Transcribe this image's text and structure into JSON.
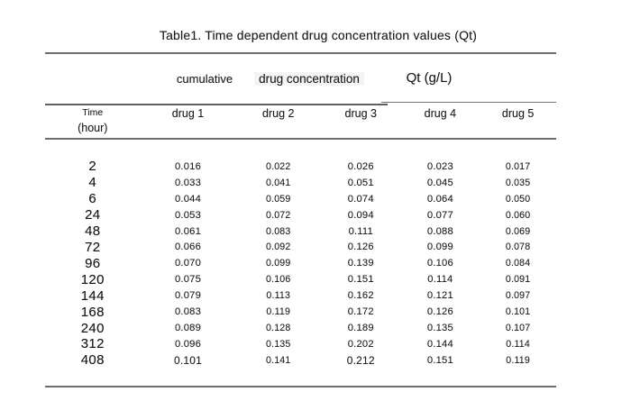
{
  "table": {
    "title": "Table1. Time dependent drug concentration values (Qt)",
    "group_headers": {
      "cumulative": "cumulative",
      "drug_concentration": "drug concentration",
      "qt_unit": "Qt (g/L)"
    },
    "column_headers": {
      "time_line1": "Time",
      "time_line2": "(hour)",
      "drugs": [
        "drug 1",
        "drug 2",
        "drug 3",
        "drug 4",
        "drug 5"
      ]
    },
    "rows": [
      {
        "time": "2",
        "values": [
          "0.016",
          "0.022",
          "0.026",
          "0.023",
          "0.017"
        ]
      },
      {
        "time": "4",
        "values": [
          "0.033",
          "0.041",
          "0.051",
          "0.045",
          "0.035"
        ]
      },
      {
        "time": "6",
        "values": [
          "0.044",
          "0.059",
          "0.074",
          "0.064",
          "0.050"
        ]
      },
      {
        "time": "24",
        "values": [
          "0.053",
          "0.072",
          "0.094",
          "0.077",
          "0.060"
        ]
      },
      {
        "time": "48",
        "values": [
          "0.061",
          "0.083",
          "0.111",
          "0.088",
          "0.069"
        ]
      },
      {
        "time": "72",
        "values": [
          "0.066",
          "0.092",
          "0.126",
          "0.099",
          "0.078"
        ]
      },
      {
        "time": "96",
        "values": [
          "0.070",
          "0.099",
          "0.139",
          "0.106",
          "0.084"
        ]
      },
      {
        "time": "120",
        "values": [
          "0.075",
          "0.106",
          "0.151",
          "0.114",
          "0.091"
        ]
      },
      {
        "time": "144",
        "values": [
          "0.079",
          "0.113",
          "0.162",
          "0.121",
          "0.097"
        ]
      },
      {
        "time": "168",
        "values": [
          "0.083",
          "0.119",
          "0.172",
          "0.126",
          "0.101"
        ]
      },
      {
        "time": "240",
        "values": [
          "0.089",
          "0.128",
          "0.189",
          "0.135",
          "0.107"
        ]
      },
      {
        "time": "312",
        "values": [
          "0.096",
          "0.135",
          "0.202",
          "0.144",
          "0.114"
        ]
      },
      {
        "time": "408",
        "values": [
          "0.101",
          "0.141",
          "0.212",
          "0.151",
          "0.119"
        ]
      }
    ],
    "colors": {
      "text": "#1e1e1e",
      "rule": "#6d6d6d",
      "background": "#ffffff"
    }
  },
  "chart_data": {
    "type": "table",
    "title": "Table1. Time dependent drug concentration values (Qt)",
    "group_headers": [
      "cumulative",
      "drug concentration",
      "Qt (g/L)"
    ],
    "columns": [
      "Time (hour)",
      "drug 1",
      "drug 2",
      "drug 3",
      "drug 4",
      "drug 5"
    ],
    "rows": [
      [
        2,
        0.016,
        0.022,
        0.026,
        0.023,
        0.017
      ],
      [
        4,
        0.033,
        0.041,
        0.051,
        0.045,
        0.035
      ],
      [
        6,
        0.044,
        0.059,
        0.074,
        0.064,
        0.05
      ],
      [
        24,
        0.053,
        0.072,
        0.094,
        0.077,
        0.06
      ],
      [
        48,
        0.061,
        0.083,
        0.111,
        0.088,
        0.069
      ],
      [
        72,
        0.066,
        0.092,
        0.126,
        0.099,
        0.078
      ],
      [
        96,
        0.07,
        0.099,
        0.139,
        0.106,
        0.084
      ],
      [
        120,
        0.075,
        0.106,
        0.151,
        0.114,
        0.091
      ],
      [
        144,
        0.079,
        0.113,
        0.162,
        0.121,
        0.097
      ],
      [
        168,
        0.083,
        0.119,
        0.172,
        0.126,
        0.101
      ],
      [
        240,
        0.089,
        0.128,
        0.189,
        0.135,
        0.107
      ],
      [
        312,
        0.096,
        0.135,
        0.202,
        0.144,
        0.114
      ],
      [
        408,
        0.101,
        0.141,
        0.212,
        0.151,
        0.119
      ]
    ]
  }
}
